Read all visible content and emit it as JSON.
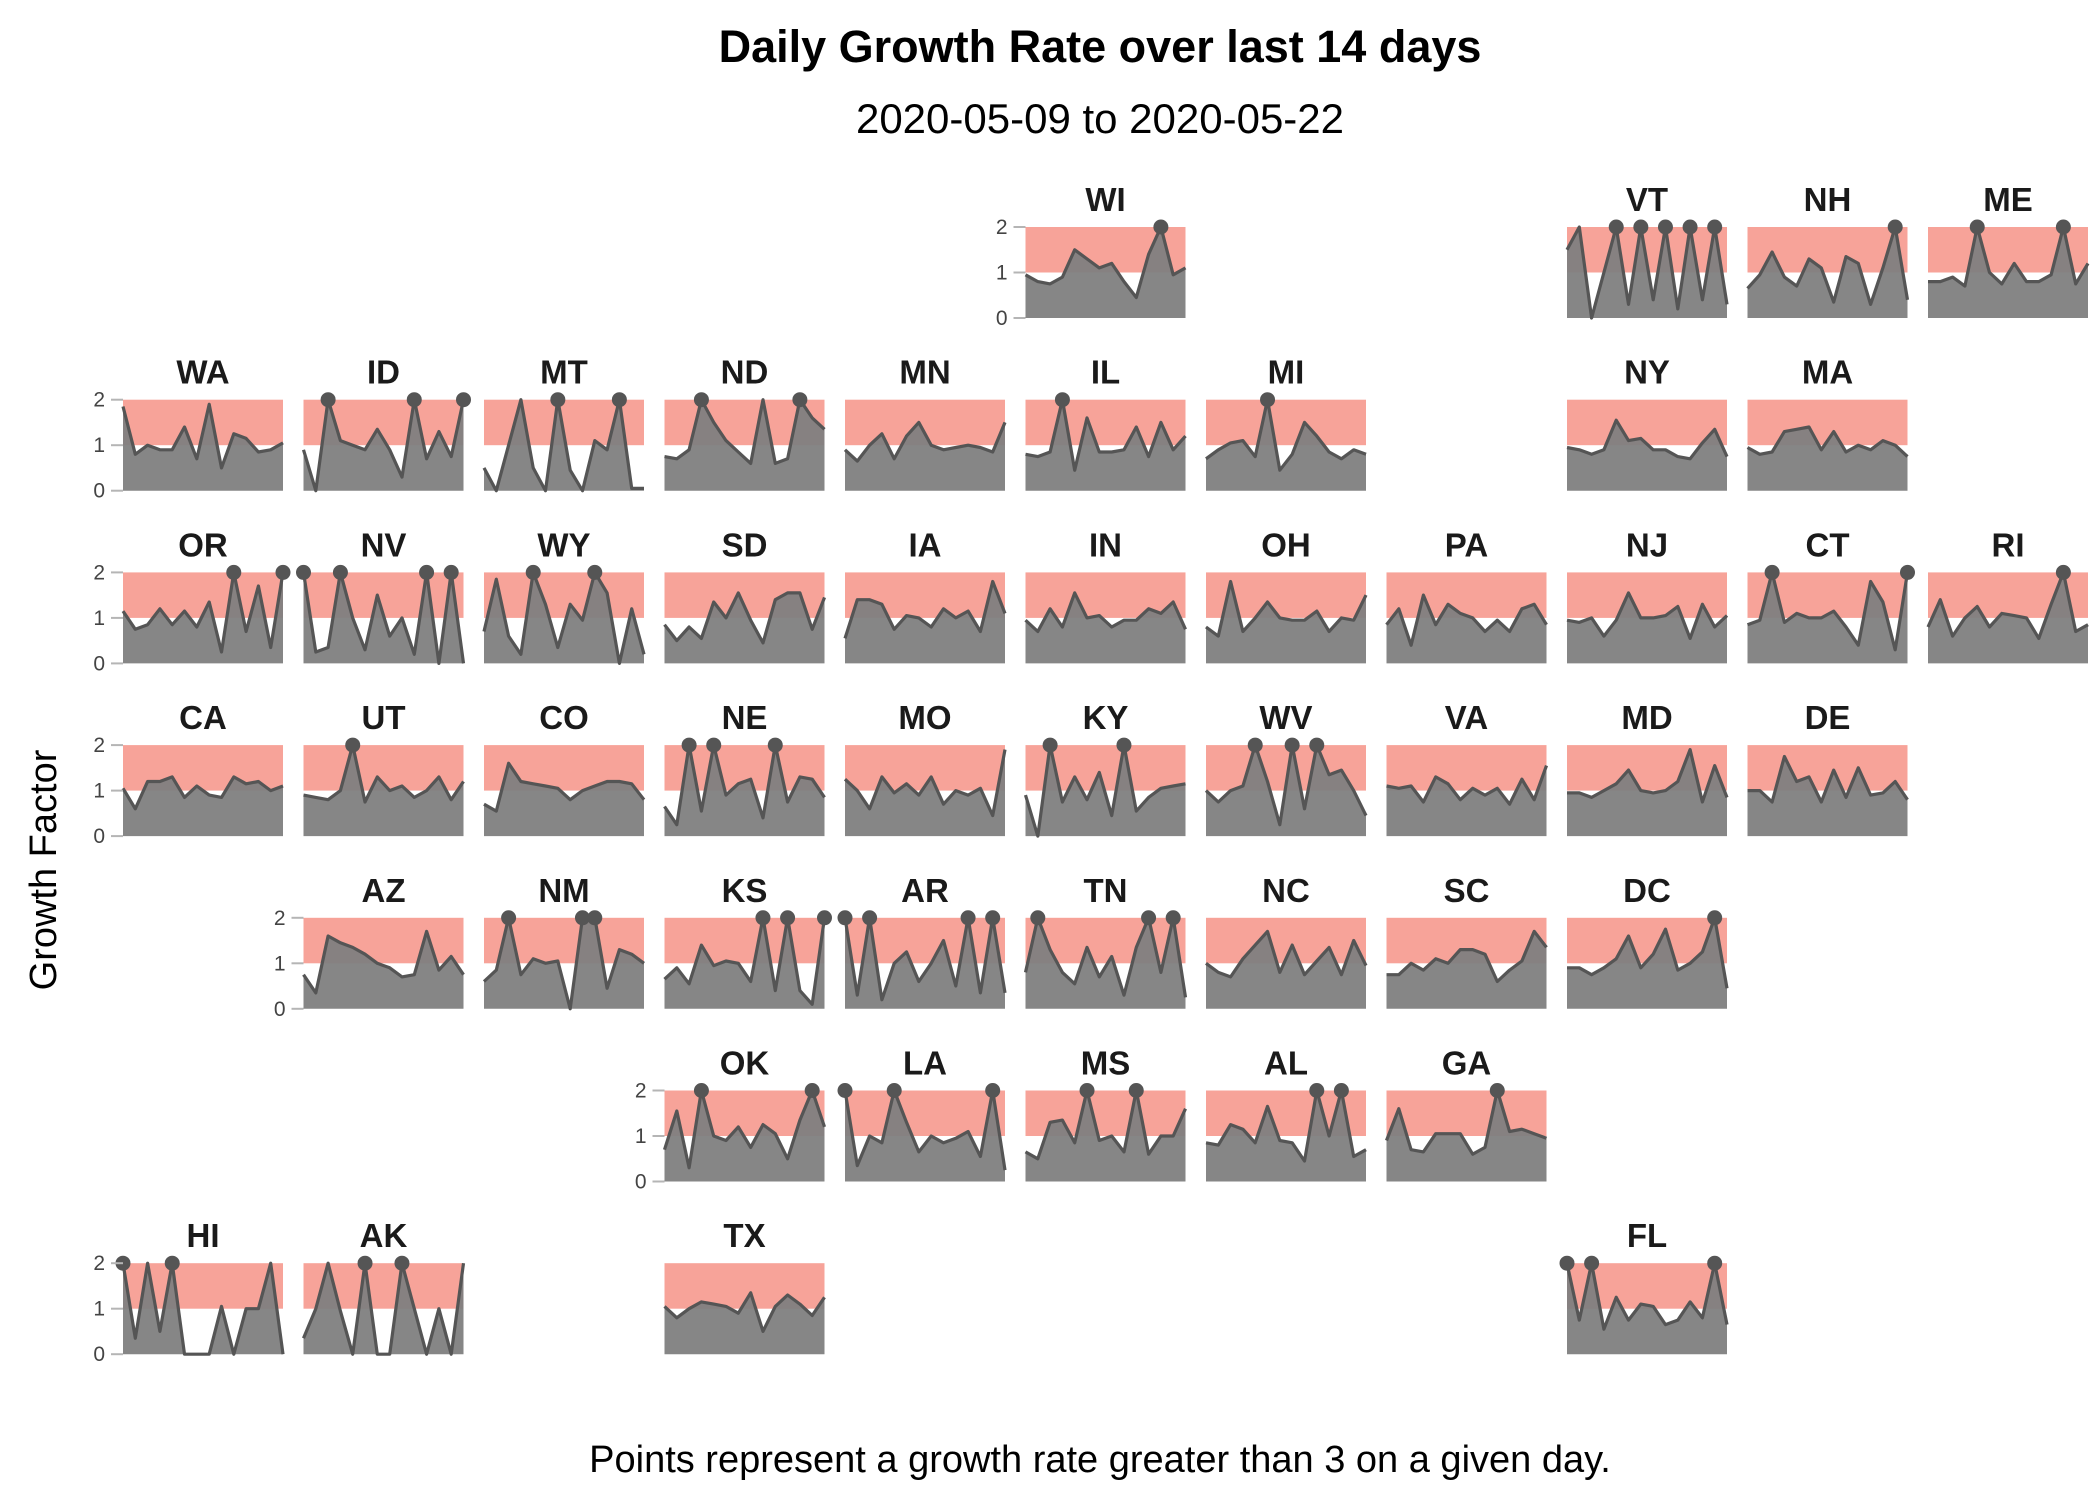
{
  "chart_data": {
    "type": "area",
    "title": "Daily Growth Rate over last 14 days",
    "subtitle": "2020-05-09 to 2020-05-22",
    "ylabel": "Growth Factor",
    "caption": "Points represent a growth rate greater than 3 on a given day.",
    "ylim": [
      0,
      2
    ],
    "yticks": [
      0,
      1,
      2
    ],
    "highlight_band": [
      1,
      2
    ],
    "colors": {
      "band": "#f7a399",
      "area": "#808080",
      "line": "#555555",
      "point": "#555555"
    },
    "states": [
      {
        "name": "WI",
        "row": 0,
        "col": 5,
        "values": [
          0.95,
          0.8,
          0.75,
          0.9,
          1.5,
          1.3,
          1.1,
          1.2,
          0.8,
          0.45,
          1.4,
          2.0,
          0.95,
          1.1
        ],
        "capped": [
          11
        ]
      },
      {
        "name": "VT",
        "row": 0,
        "col": 8,
        "values": [
          1.5,
          2.0,
          0.0,
          1.0,
          2.0,
          0.3,
          2.0,
          0.4,
          2.0,
          0.2,
          2.0,
          0.4,
          2.0,
          0.3
        ],
        "capped": [
          4,
          6,
          8,
          10,
          12
        ]
      },
      {
        "name": "NH",
        "row": 0,
        "col": 9,
        "values": [
          0.65,
          0.95,
          1.45,
          0.9,
          0.7,
          1.3,
          1.1,
          0.35,
          1.35,
          1.2,
          0.3,
          1.1,
          2.0,
          0.4
        ],
        "capped": [
          12
        ]
      },
      {
        "name": "ME",
        "row": 0,
        "col": 10,
        "values": [
          0.8,
          0.8,
          0.9,
          0.7,
          2.0,
          1.0,
          0.75,
          1.2,
          0.8,
          0.8,
          0.95,
          2.0,
          0.75,
          1.2
        ],
        "capped": [
          4,
          11
        ]
      },
      {
        "name": "WA",
        "row": 1,
        "col": 0,
        "values": [
          1.85,
          0.8,
          1.0,
          0.9,
          0.9,
          1.4,
          0.7,
          1.9,
          0.5,
          1.25,
          1.15,
          0.85,
          0.9,
          1.05
        ],
        "capped": []
      },
      {
        "name": "ID",
        "row": 1,
        "col": 1,
        "values": [
          0.9,
          0.0,
          2.0,
          1.1,
          1.0,
          0.9,
          1.35,
          0.9,
          0.3,
          2.0,
          0.7,
          1.3,
          0.75,
          2.0
        ],
        "capped": [
          2,
          9,
          13
        ]
      },
      {
        "name": "MT",
        "row": 1,
        "col": 2,
        "values": [
          0.5,
          0.0,
          1.0,
          2.0,
          0.5,
          0.0,
          2.0,
          0.45,
          0.0,
          1.1,
          0.9,
          2.0,
          0.05,
          0.05
        ],
        "capped": [
          6,
          11
        ]
      },
      {
        "name": "ND",
        "row": 1,
        "col": 3,
        "values": [
          0.75,
          0.7,
          0.9,
          2.0,
          1.5,
          1.1,
          0.85,
          0.6,
          2.0,
          0.6,
          0.7,
          2.0,
          1.6,
          1.35
        ],
        "capped": [
          3,
          11
        ]
      },
      {
        "name": "MN",
        "row": 1,
        "col": 4,
        "values": [
          0.9,
          0.65,
          1.0,
          1.25,
          0.7,
          1.2,
          1.5,
          1.0,
          0.9,
          0.95,
          1.0,
          0.95,
          0.85,
          1.5
        ],
        "capped": []
      },
      {
        "name": "IL",
        "row": 1,
        "col": 5,
        "values": [
          0.8,
          0.75,
          0.85,
          2.0,
          0.45,
          1.6,
          0.85,
          0.85,
          0.9,
          1.4,
          0.75,
          1.5,
          0.9,
          1.2
        ],
        "capped": [
          3
        ]
      },
      {
        "name": "MI",
        "row": 1,
        "col": 6,
        "values": [
          0.7,
          0.9,
          1.05,
          1.1,
          0.75,
          2.0,
          0.45,
          0.8,
          1.5,
          1.2,
          0.85,
          0.7,
          0.9,
          0.8
        ],
        "capped": [
          5
        ]
      },
      {
        "name": "NY",
        "row": 1,
        "col": 8,
        "values": [
          0.95,
          0.9,
          0.8,
          0.9,
          1.55,
          1.1,
          1.15,
          0.9,
          0.9,
          0.75,
          0.7,
          1.05,
          1.35,
          0.75
        ],
        "capped": []
      },
      {
        "name": "MA",
        "row": 1,
        "col": 9,
        "values": [
          0.95,
          0.8,
          0.85,
          1.3,
          1.35,
          1.4,
          0.9,
          1.3,
          0.85,
          1.0,
          0.9,
          1.1,
          1.0,
          0.75
        ],
        "capped": []
      },
      {
        "name": "OR",
        "row": 2,
        "col": 0,
        "values": [
          1.15,
          0.75,
          0.85,
          1.2,
          0.85,
          1.15,
          0.8,
          1.35,
          0.25,
          2.0,
          0.7,
          1.7,
          0.35,
          2.0
        ],
        "capped": [
          9,
          13
        ]
      },
      {
        "name": "NV",
        "row": 2,
        "col": 1,
        "values": [
          2.0,
          0.25,
          0.35,
          2.0,
          1.0,
          0.3,
          1.5,
          0.6,
          1.0,
          0.2,
          2.0,
          0.0,
          2.0,
          0.0
        ],
        "capped": [
          0,
          3,
          10,
          12
        ]
      },
      {
        "name": "WY",
        "row": 2,
        "col": 2,
        "values": [
          0.7,
          1.85,
          0.6,
          0.2,
          2.0,
          1.3,
          0.35,
          1.3,
          0.95,
          2.0,
          1.55,
          0.0,
          1.2,
          0.2
        ],
        "capped": [
          4,
          9
        ]
      },
      {
        "name": "SD",
        "row": 2,
        "col": 3,
        "values": [
          0.85,
          0.5,
          0.8,
          0.55,
          1.35,
          1.0,
          1.55,
          0.95,
          0.45,
          1.4,
          1.55,
          1.55,
          0.75,
          1.45
        ],
        "capped": []
      },
      {
        "name": "IA",
        "row": 2,
        "col": 4,
        "values": [
          0.55,
          1.4,
          1.4,
          1.3,
          0.75,
          1.05,
          1.0,
          0.8,
          1.2,
          1.0,
          1.15,
          0.7,
          1.8,
          1.1
        ],
        "capped": []
      },
      {
        "name": "IN",
        "row": 2,
        "col": 5,
        "values": [
          0.95,
          0.7,
          1.2,
          0.8,
          1.55,
          1.0,
          1.05,
          0.8,
          0.95,
          0.95,
          1.2,
          1.1,
          1.35,
          0.75
        ],
        "capped": []
      },
      {
        "name": "OH",
        "row": 2,
        "col": 6,
        "values": [
          0.8,
          0.6,
          1.8,
          0.7,
          1.0,
          1.35,
          1.0,
          0.95,
          0.95,
          1.15,
          0.7,
          1.0,
          0.95,
          1.5
        ],
        "capped": []
      },
      {
        "name": "PA",
        "row": 2,
        "col": 7,
        "values": [
          0.85,
          1.2,
          0.4,
          1.5,
          0.85,
          1.3,
          1.1,
          1.0,
          0.7,
          0.95,
          0.7,
          1.2,
          1.3,
          0.85
        ],
        "capped": []
      },
      {
        "name": "NJ",
        "row": 2,
        "col": 8,
        "values": [
          0.95,
          0.9,
          1.0,
          0.6,
          0.95,
          1.55,
          1.0,
          1.0,
          1.05,
          1.25,
          0.55,
          1.3,
          0.8,
          1.05
        ],
        "capped": []
      },
      {
        "name": "CT",
        "row": 2,
        "col": 9,
        "values": [
          0.85,
          0.95,
          2.0,
          0.9,
          1.1,
          1.0,
          1.0,
          1.15,
          0.8,
          0.4,
          1.8,
          1.35,
          0.3,
          2.0
        ],
        "capped": [
          2,
          13
        ]
      },
      {
        "name": "RI",
        "row": 2,
        "col": 10,
        "values": [
          0.8,
          1.4,
          0.6,
          1.0,
          1.25,
          0.8,
          1.1,
          1.05,
          1.0,
          0.55,
          1.3,
          2.0,
          0.7,
          0.85
        ],
        "capped": [
          11
        ]
      },
      {
        "name": "CA",
        "row": 3,
        "col": 0,
        "values": [
          1.05,
          0.6,
          1.2,
          1.2,
          1.3,
          0.85,
          1.1,
          0.9,
          0.85,
          1.3,
          1.15,
          1.2,
          1.0,
          1.1
        ],
        "capped": []
      },
      {
        "name": "UT",
        "row": 3,
        "col": 1,
        "values": [
          0.9,
          0.85,
          0.8,
          1.0,
          2.0,
          0.75,
          1.3,
          1.0,
          1.1,
          0.85,
          1.0,
          1.3,
          0.8,
          1.2
        ],
        "capped": [
          4
        ]
      },
      {
        "name": "CO",
        "row": 3,
        "col": 2,
        "values": [
          0.7,
          0.55,
          1.6,
          1.2,
          1.15,
          1.1,
          1.05,
          0.8,
          1.0,
          1.1,
          1.2,
          1.2,
          1.15,
          0.8
        ],
        "capped": []
      },
      {
        "name": "NE",
        "row": 3,
        "col": 3,
        "values": [
          0.65,
          0.25,
          2.0,
          0.55,
          2.0,
          0.9,
          1.15,
          1.25,
          0.4,
          2.0,
          0.75,
          1.3,
          1.25,
          0.85
        ],
        "capped": [
          2,
          4,
          9
        ]
      },
      {
        "name": "MO",
        "row": 3,
        "col": 4,
        "values": [
          1.25,
          1.0,
          0.6,
          1.3,
          0.95,
          1.15,
          0.9,
          1.3,
          0.7,
          1.0,
          0.9,
          1.05,
          0.45,
          1.9
        ],
        "capped": []
      },
      {
        "name": "KY",
        "row": 3,
        "col": 5,
        "values": [
          0.9,
          0.0,
          2.0,
          0.75,
          1.3,
          0.8,
          1.4,
          0.45,
          2.0,
          0.55,
          0.85,
          1.05,
          1.1,
          1.15
        ],
        "capped": [
          2,
          8
        ]
      },
      {
        "name": "WV",
        "row": 3,
        "col": 6,
        "values": [
          1.0,
          0.75,
          1.0,
          1.1,
          2.0,
          1.2,
          0.25,
          2.0,
          0.6,
          2.0,
          1.35,
          1.45,
          1.0,
          0.45
        ],
        "capped": [
          4,
          7,
          9
        ]
      },
      {
        "name": "VA",
        "row": 3,
        "col": 7,
        "values": [
          1.1,
          1.05,
          1.1,
          0.75,
          1.3,
          1.15,
          0.8,
          1.05,
          0.9,
          1.05,
          0.7,
          1.25,
          0.8,
          1.55
        ],
        "capped": []
      },
      {
        "name": "MD",
        "row": 3,
        "col": 8,
        "values": [
          0.95,
          0.95,
          0.85,
          1.0,
          1.15,
          1.45,
          1.0,
          0.95,
          1.0,
          1.2,
          1.9,
          0.75,
          1.55,
          0.85
        ],
        "capped": []
      },
      {
        "name": "DE",
        "row": 3,
        "col": 9,
        "values": [
          1.0,
          1.0,
          0.75,
          1.75,
          1.2,
          1.3,
          0.75,
          1.45,
          0.85,
          1.5,
          0.9,
          0.95,
          1.2,
          0.8
        ],
        "capped": []
      },
      {
        "name": "AZ",
        "row": 4,
        "col": 1,
        "values": [
          0.75,
          0.35,
          1.6,
          1.45,
          1.35,
          1.2,
          1.0,
          0.9,
          0.7,
          0.75,
          1.7,
          0.85,
          1.15,
          0.75
        ],
        "capped": []
      },
      {
        "name": "NM",
        "row": 4,
        "col": 2,
        "values": [
          0.6,
          0.85,
          2.0,
          0.75,
          1.1,
          1.0,
          1.05,
          0.0,
          2.0,
          2.0,
          0.45,
          1.3,
          1.2,
          1.0
        ],
        "capped": [
          2,
          8,
          9
        ]
      },
      {
        "name": "KS",
        "row": 4,
        "col": 3,
        "values": [
          0.65,
          0.9,
          0.55,
          1.4,
          0.95,
          1.05,
          1.0,
          0.6,
          2.0,
          0.4,
          2.0,
          0.4,
          0.1,
          2.0
        ],
        "capped": [
          8,
          10,
          13
        ]
      },
      {
        "name": "AR",
        "row": 4,
        "col": 4,
        "values": [
          2.0,
          0.3,
          2.0,
          0.2,
          1.0,
          1.25,
          0.6,
          1.0,
          1.5,
          0.5,
          2.0,
          0.35,
          2.0,
          0.35
        ],
        "capped": [
          0,
          2,
          10,
          12
        ]
      },
      {
        "name": "TN",
        "row": 4,
        "col": 5,
        "values": [
          0.8,
          2.0,
          1.3,
          0.8,
          0.55,
          1.35,
          0.7,
          1.15,
          0.3,
          1.35,
          2.0,
          0.8,
          2.0,
          0.25
        ],
        "capped": [
          1,
          10,
          12
        ]
      },
      {
        "name": "NC",
        "row": 4,
        "col": 6,
        "values": [
          1.0,
          0.8,
          0.7,
          1.1,
          1.4,
          1.7,
          0.8,
          1.4,
          0.75,
          1.05,
          1.35,
          0.75,
          1.5,
          0.95
        ],
        "capped": []
      },
      {
        "name": "SC",
        "row": 4,
        "col": 7,
        "values": [
          0.75,
          0.75,
          1.0,
          0.85,
          1.1,
          1.0,
          1.3,
          1.3,
          1.2,
          0.6,
          0.85,
          1.05,
          1.7,
          1.35
        ],
        "capped": []
      },
      {
        "name": "DC",
        "row": 4,
        "col": 8,
        "values": [
          0.9,
          0.9,
          0.75,
          0.9,
          1.1,
          1.6,
          0.9,
          1.2,
          1.75,
          0.85,
          1.0,
          1.25,
          2.0,
          0.45
        ],
        "capped": [
          12
        ]
      },
      {
        "name": "OK",
        "row": 5,
        "col": 3,
        "values": [
          0.7,
          1.55,
          0.3,
          2.0,
          1.0,
          0.9,
          1.2,
          0.75,
          1.25,
          1.05,
          0.5,
          1.35,
          2.0,
          1.2
        ],
        "capped": [
          3,
          12
        ]
      },
      {
        "name": "LA",
        "row": 5,
        "col": 4,
        "values": [
          2.0,
          0.35,
          1.0,
          0.85,
          2.0,
          1.3,
          0.65,
          1.0,
          0.85,
          0.95,
          1.1,
          0.55,
          2.0,
          0.25
        ],
        "capped": [
          0,
          4,
          12
        ]
      },
      {
        "name": "MS",
        "row": 5,
        "col": 5,
        "values": [
          0.65,
          0.5,
          1.3,
          1.35,
          0.85,
          2.0,
          0.9,
          1.0,
          0.65,
          2.0,
          0.6,
          1.0,
          1.0,
          1.6
        ],
        "capped": [
          5,
          9
        ]
      },
      {
        "name": "AL",
        "row": 5,
        "col": 6,
        "values": [
          0.85,
          0.8,
          1.25,
          1.15,
          0.85,
          1.65,
          0.9,
          0.85,
          0.45,
          2.0,
          1.0,
          2.0,
          0.55,
          0.7
        ],
        "capped": [
          9,
          11
        ]
      },
      {
        "name": "GA",
        "row": 5,
        "col": 7,
        "values": [
          0.9,
          1.6,
          0.7,
          0.65,
          1.05,
          1.05,
          1.05,
          0.6,
          0.75,
          2.0,
          1.1,
          1.15,
          1.05,
          0.95
        ],
        "capped": [
          9
        ]
      },
      {
        "name": "HI",
        "row": 6,
        "col": 0,
        "values": [
          2.0,
          0.35,
          2.0,
          0.5,
          2.0,
          0.0,
          0.0,
          0.0,
          1.05,
          0.0,
          1.0,
          1.0,
          2.0,
          0.0
        ],
        "capped": [
          0,
          4
        ]
      },
      {
        "name": "AK",
        "row": 6,
        "col": 1,
        "values": [
          0.35,
          1.0,
          2.0,
          0.95,
          0.0,
          2.0,
          0.0,
          0.0,
          2.0,
          1.0,
          0.0,
          1.0,
          0.0,
          2.0
        ],
        "capped": [
          5,
          8
        ]
      },
      {
        "name": "TX",
        "row": 6,
        "col": 3,
        "values": [
          1.05,
          0.8,
          1.0,
          1.15,
          1.1,
          1.05,
          0.9,
          1.35,
          0.5,
          1.05,
          1.3,
          1.1,
          0.85,
          1.25
        ],
        "capped": []
      },
      {
        "name": "FL",
        "row": 6,
        "col": 8,
        "values": [
          2.0,
          0.75,
          2.0,
          0.55,
          1.25,
          0.75,
          1.1,
          1.05,
          0.65,
          0.75,
          1.15,
          0.8,
          2.0,
          0.65
        ],
        "capped": [
          0,
          2,
          12
        ]
      }
    ]
  }
}
